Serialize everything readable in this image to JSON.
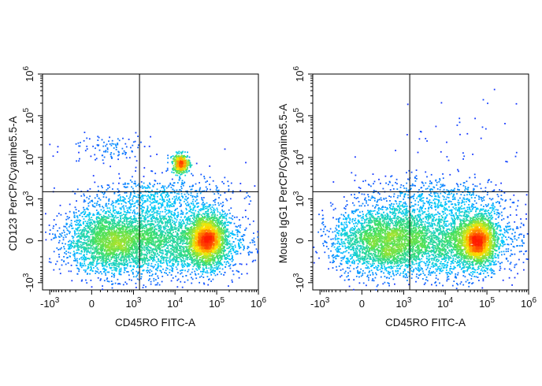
{
  "colors": {
    "background": "#ffffff",
    "frame": "#000000",
    "gate": "#000000",
    "density_low": "#1a1aff",
    "density_mid_low": "#00c8ff",
    "density_mid": "#44e060",
    "density_mid_high": "#ffe600",
    "density_high": "#ff1a00"
  },
  "chart_data": [
    {
      "type": "scatter",
      "plot_style": "density pseudocolor",
      "xlabel": "CD45RO FITC-A",
      "ylabel": "CD123 PerCP/Cyanine5.5-A",
      "x_scale": "biexponential",
      "y_scale": "biexponential",
      "xlim": [
        -1500,
        1000000
      ],
      "ylim": [
        -1500,
        1000000
      ],
      "x_ticks": [
        {
          "value": -1000,
          "label": "-10",
          "exp": "3"
        },
        {
          "value": 0,
          "label": "0",
          "exp": ""
        },
        {
          "value": 1000,
          "label": "10",
          "exp": "3"
        },
        {
          "value": 10000,
          "label": "10",
          "exp": "4"
        },
        {
          "value": 100000,
          "label": "10",
          "exp": "5"
        },
        {
          "value": 1000000,
          "label": "10",
          "exp": "6"
        }
      ],
      "y_ticks": [
        {
          "value": -1000,
          "label": "-10",
          "exp": "3"
        },
        {
          "value": 0,
          "label": "0",
          "exp": ""
        },
        {
          "value": 1000,
          "label": "10",
          "exp": "3"
        },
        {
          "value": 10000,
          "label": "10",
          "exp": "4"
        },
        {
          "value": 100000,
          "label": "10",
          "exp": "5"
        },
        {
          "value": 1000000,
          "label": "10",
          "exp": "6"
        }
      ],
      "gate": {
        "x": 1400,
        "y": 1500
      },
      "populations": [
        {
          "x": 250,
          "y": 0,
          "sx": 0.55,
          "sy": 0.38,
          "n": 2200
        },
        {
          "x": 8000,
          "y": 0,
          "sx": 0.9,
          "sy": 0.42,
          "n": 2600
        },
        {
          "x": 60000,
          "y": 0,
          "sx": 0.22,
          "sy": 0.3,
          "n": 1800
        },
        {
          "x": 14000,
          "y": 7000,
          "sx": 0.1,
          "sy": 0.11,
          "n": 450
        },
        {
          "x": 220,
          "y": 17000,
          "sx": 0.5,
          "sy": 0.15,
          "n": 110
        },
        {
          "x": 4000,
          "y": 1200,
          "sx": 0.8,
          "sy": 0.25,
          "n": 500
        }
      ]
    },
    {
      "type": "scatter",
      "plot_style": "density pseudocolor",
      "xlabel": "CD45RO FITC-A",
      "ylabel": "Mouse IgG1 PerCP/Cyanine5.5-A",
      "x_scale": "biexponential",
      "y_scale": "biexponential",
      "xlim": [
        -1500,
        1000000
      ],
      "ylim": [
        -1500,
        1000000
      ],
      "x_ticks": [
        {
          "value": -1000,
          "label": "-10",
          "exp": "3"
        },
        {
          "value": 0,
          "label": "0",
          "exp": ""
        },
        {
          "value": 1000,
          "label": "10",
          "exp": "3"
        },
        {
          "value": 10000,
          "label": "10",
          "exp": "4"
        },
        {
          "value": 100000,
          "label": "10",
          "exp": "5"
        },
        {
          "value": 1000000,
          "label": "10",
          "exp": "6"
        }
      ],
      "y_ticks": [
        {
          "value": -1000,
          "label": "-10",
          "exp": "3"
        },
        {
          "value": 0,
          "label": "0",
          "exp": ""
        },
        {
          "value": 1000,
          "label": "10",
          "exp": "3"
        },
        {
          "value": 10000,
          "label": "10",
          "exp": "4"
        },
        {
          "value": 100000,
          "label": "10",
          "exp": "5"
        },
        {
          "value": 1000000,
          "label": "10",
          "exp": "6"
        }
      ],
      "gate": {
        "x": 1400,
        "y": 1500
      },
      "populations": [
        {
          "x": 250,
          "y": 0,
          "sx": 0.55,
          "sy": 0.38,
          "n": 2200
        },
        {
          "x": 8000,
          "y": 0,
          "sx": 0.9,
          "sy": 0.42,
          "n": 2600
        },
        {
          "x": 60000,
          "y": 0,
          "sx": 0.22,
          "sy": 0.3,
          "n": 1800
        },
        {
          "x": 5000,
          "y": 1200,
          "sx": 0.9,
          "sy": 0.25,
          "n": 450
        },
        {
          "x": 20000,
          "y": 30000,
          "sx": 0.8,
          "sy": 0.6,
          "n": 40
        }
      ]
    }
  ]
}
